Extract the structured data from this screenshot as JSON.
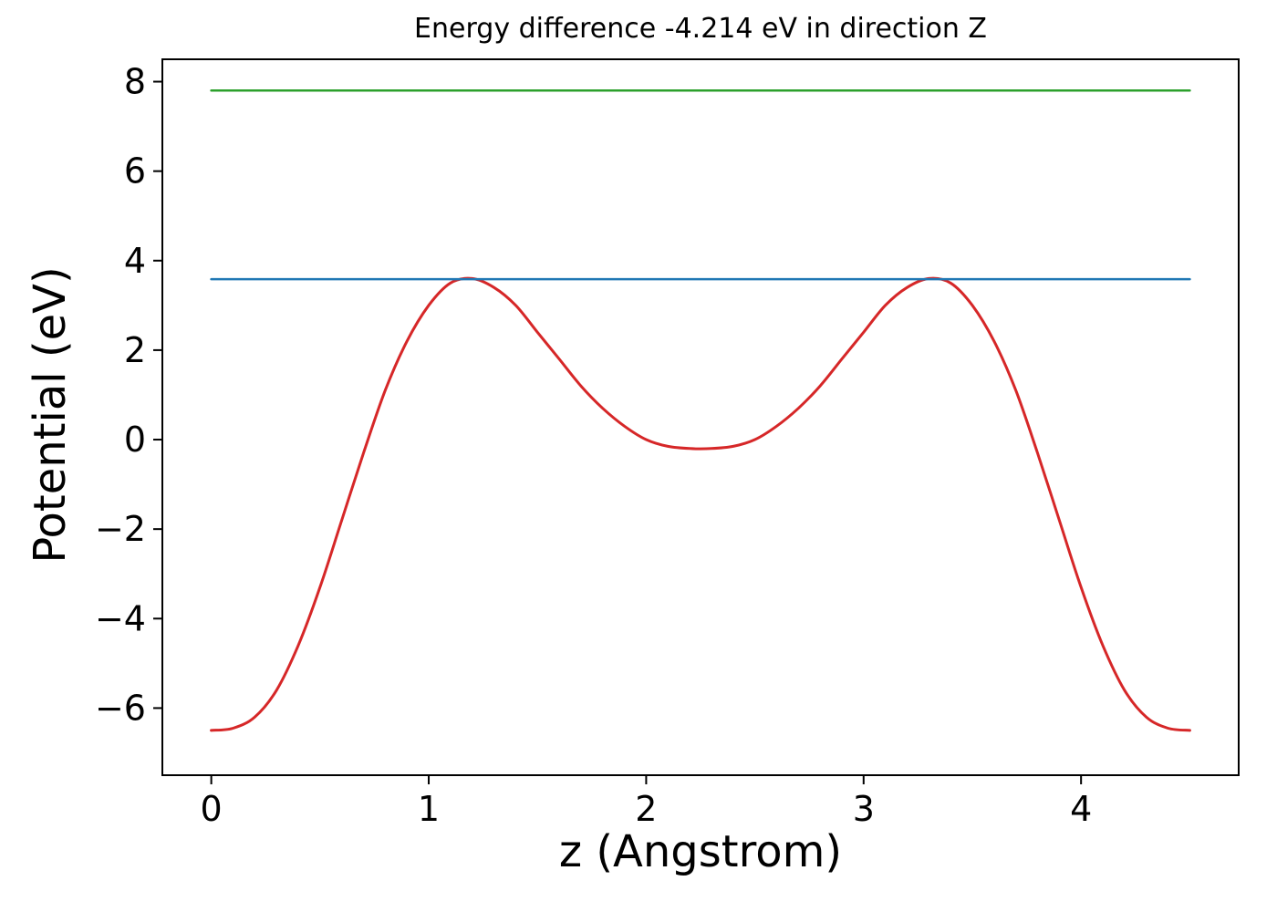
{
  "chart_data": {
    "type": "line",
    "title": "Energy difference -4.214 eV in direction Z",
    "xlabel": "z (Angstrom)",
    "ylabel": "Potential (eV)",
    "xlim": [
      -0.225,
      4.725
    ],
    "ylim": [
      -7.5,
      8.5
    ],
    "x_ticks": [
      0,
      1,
      2,
      3,
      4
    ],
    "x_tick_labels": [
      "0",
      "1",
      "2",
      "3",
      "4"
    ],
    "y_ticks": [
      -6,
      -4,
      -2,
      0,
      2,
      4,
      6,
      8
    ],
    "y_tick_labels": [
      "−6",
      "−4",
      "−2",
      "0",
      "2",
      "4",
      "6",
      "8"
    ],
    "grid": false,
    "legend": "none",
    "series": [
      {
        "name": "potential-curve",
        "color": "#d62728",
        "x": [
          0.0,
          0.1,
          0.2,
          0.3,
          0.4,
          0.5,
          0.6,
          0.7,
          0.8,
          0.9,
          1.0,
          1.1,
          1.2,
          1.3,
          1.4,
          1.5,
          1.6,
          1.7,
          1.8,
          1.9,
          2.0,
          2.1,
          2.2,
          2.3,
          2.4,
          2.5,
          2.6,
          2.7,
          2.8,
          2.9,
          3.0,
          3.1,
          3.2,
          3.3,
          3.4,
          3.5,
          3.6,
          3.7,
          3.8,
          3.9,
          4.0,
          4.1,
          4.2,
          4.3,
          4.4,
          4.5
        ],
        "y": [
          -6.5,
          -6.45,
          -6.2,
          -5.6,
          -4.6,
          -3.3,
          -1.8,
          -0.3,
          1.1,
          2.2,
          3.0,
          3.5,
          3.6,
          3.4,
          3.0,
          2.4,
          1.8,
          1.2,
          0.7,
          0.3,
          0.0,
          -0.15,
          -0.2,
          -0.2,
          -0.15,
          0.0,
          0.3,
          0.7,
          1.2,
          1.8,
          2.4,
          3.0,
          3.4,
          3.6,
          3.5,
          3.0,
          2.2,
          1.1,
          -0.3,
          -1.8,
          -3.3,
          -4.6,
          -5.6,
          -6.2,
          -6.45,
          -6.5
        ]
      },
      {
        "name": "lower-level-line",
        "color": "#1f77b4",
        "x": [
          0.0,
          4.5
        ],
        "y": [
          3.586,
          3.586
        ]
      },
      {
        "name": "upper-level-line",
        "color": "#2ca02c",
        "x": [
          0.0,
          4.5
        ],
        "y": [
          7.8,
          7.8
        ]
      }
    ]
  }
}
